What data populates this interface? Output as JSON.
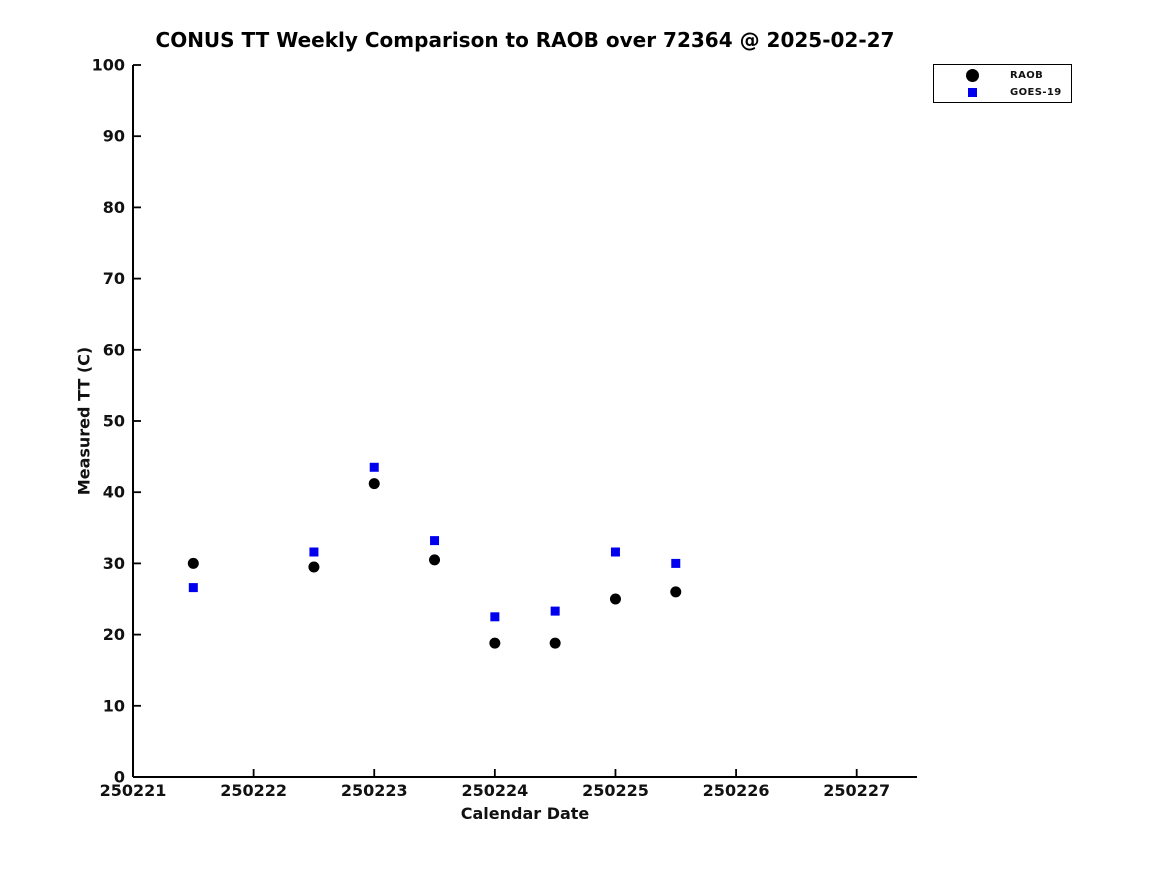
{
  "page": {
    "background": "#ffffff"
  },
  "chart_data": {
    "type": "scatter",
    "title": "CONUS TT Weekly Comparison to RAOB over 72364 @ 2025-02-27",
    "xlabel": "Calendar Date",
    "ylabel": "Measured TT (C)",
    "xlim": [
      250221,
      250227.5
    ],
    "ylim": [
      0,
      100
    ],
    "x_ticks": [
      250221,
      250222,
      250223,
      250224,
      250225,
      250226,
      250227
    ],
    "x_tick_labels": [
      "250221",
      "250222",
      "250223",
      "250224",
      "250225",
      "250226",
      "250227"
    ],
    "y_ticks": [
      0,
      10,
      20,
      30,
      40,
      50,
      60,
      70,
      80,
      90,
      100
    ],
    "y_tick_labels": [
      "0",
      "10",
      "20",
      "30",
      "40",
      "50",
      "60",
      "70",
      "80",
      "90",
      "100"
    ],
    "grid": false,
    "legend_position": "top-right-outside-plot",
    "x": [
      250221.5,
      250222.5,
      250223.0,
      250223.5,
      250224.0,
      250224.5,
      250225.0,
      250225.5
    ],
    "series": [
      {
        "name": "RAOB",
        "marker": "circle",
        "color": "#000000",
        "values": [
          30.0,
          29.5,
          41.2,
          30.5,
          18.8,
          18.8,
          25.0,
          26.0
        ]
      },
      {
        "name": "GOES-19",
        "marker": "square",
        "color": "#0000ee",
        "values": [
          26.6,
          31.6,
          43.5,
          33.2,
          22.5,
          23.3,
          31.6,
          30.0
        ]
      }
    ]
  }
}
